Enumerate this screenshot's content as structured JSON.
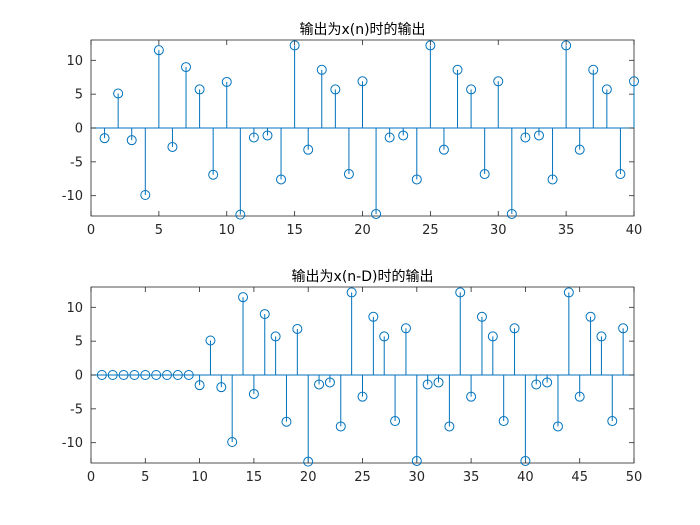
{
  "chart_data": [
    {
      "type": "stem",
      "title": "输出为x(n)时的输出",
      "xlabel": "",
      "ylabel": "",
      "xlim": [
        0,
        40
      ],
      "ylim": [
        -13,
        13
      ],
      "xticks": [
        0,
        5,
        10,
        15,
        20,
        25,
        30,
        35,
        40
      ],
      "yticks": [
        -10,
        -5,
        0,
        5,
        10
      ],
      "grid": false,
      "color": "#0072bd",
      "x": [
        1,
        2,
        3,
        4,
        5,
        6,
        7,
        8,
        9,
        10,
        11,
        12,
        13,
        14,
        15,
        16,
        17,
        18,
        19,
        20,
        21,
        22,
        23,
        24,
        25,
        26,
        27,
        28,
        29,
        30,
        31,
        32,
        33,
        34,
        35,
        36,
        37,
        38,
        39,
        40
      ],
      "values": [
        -1.5,
        5.1,
        -1.8,
        -9.9,
        11.5,
        -2.8,
        9.0,
        5.7,
        -6.9,
        6.8,
        -12.8,
        -1.4,
        -1.1,
        -7.6,
        12.2,
        -3.2,
        8.6,
        5.7,
        -6.8,
        6.9,
        -12.7,
        -1.4,
        -1.1,
        -7.6,
        12.2,
        -3.2,
        8.6,
        5.7,
        -6.8,
        6.9,
        -12.7,
        -1.4,
        -1.1,
        -7.6,
        12.2,
        -3.2,
        8.6,
        5.7,
        -6.8,
        6.9
      ]
    },
    {
      "type": "stem",
      "title": "输出为x(n-D)时的输出",
      "xlabel": "",
      "ylabel": "",
      "xlim": [
        0,
        50
      ],
      "ylim": [
        -13,
        13
      ],
      "xticks": [
        0,
        5,
        10,
        15,
        20,
        25,
        30,
        35,
        40,
        45,
        50
      ],
      "yticks": [
        -10,
        -5,
        0,
        5,
        10
      ],
      "grid": false,
      "color": "#0072bd",
      "x": [
        1,
        2,
        3,
        4,
        5,
        6,
        7,
        8,
        9,
        10,
        11,
        12,
        13,
        14,
        15,
        16,
        17,
        18,
        19,
        20,
        21,
        22,
        23,
        24,
        25,
        26,
        27,
        28,
        29,
        30,
        31,
        32,
        33,
        34,
        35,
        36,
        37,
        38,
        39,
        40,
        41,
        42,
        43,
        44,
        45,
        46,
        47,
        48,
        49
      ],
      "values": [
        0,
        0,
        0,
        0,
        0,
        0,
        0,
        0,
        0,
        -1.5,
        5.1,
        -1.8,
        -9.9,
        11.5,
        -2.8,
        9.0,
        5.7,
        -6.9,
        6.8,
        -12.8,
        -1.4,
        -1.1,
        -7.6,
        12.2,
        -3.2,
        8.6,
        5.7,
        -6.8,
        6.9,
        -12.7,
        -1.4,
        -1.1,
        -7.6,
        12.2,
        -3.2,
        8.6,
        5.7,
        -6.8,
        6.9,
        -12.7,
        -1.4,
        -1.1,
        -7.6,
        12.2,
        -3.2,
        8.6,
        5.7,
        -6.8,
        6.9
      ]
    }
  ]
}
